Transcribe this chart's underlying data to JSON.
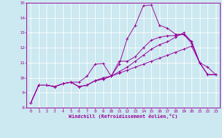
{
  "title": "",
  "xlabel": "Windchill (Refroidissement éolien,°C)",
  "bg_color": "#cce8f0",
  "grid_color": "#ffffff",
  "line_color": "#990099",
  "xlim": [
    -0.5,
    23.5
  ],
  "ylim": [
    8,
    15
  ],
  "xticks": [
    0,
    1,
    2,
    3,
    4,
    5,
    6,
    7,
    8,
    9,
    10,
    11,
    12,
    13,
    14,
    15,
    16,
    17,
    18,
    19,
    20,
    21,
    22,
    23
  ],
  "yticks": [
    8,
    9,
    10,
    11,
    12,
    13,
    14,
    15
  ],
  "series": [
    [
      8.3,
      9.5,
      9.5,
      9.4,
      9.6,
      9.7,
      9.4,
      9.5,
      9.8,
      10.0,
      10.1,
      10.9,
      12.6,
      13.5,
      14.8,
      14.85,
      13.5,
      13.3,
      12.9,
      12.9,
      12.4,
      11.0,
      10.7,
      10.2
    ],
    [
      8.3,
      9.5,
      9.5,
      9.4,
      9.6,
      9.7,
      9.7,
      10.1,
      10.9,
      10.95,
      10.1,
      11.1,
      11.1,
      11.4,
      12.0,
      12.5,
      12.7,
      12.8,
      12.8,
      12.9,
      12.3,
      11.0,
      10.2,
      10.2
    ],
    [
      8.3,
      9.5,
      9.5,
      9.4,
      9.6,
      9.7,
      9.4,
      9.5,
      9.8,
      9.9,
      10.1,
      10.4,
      10.7,
      11.1,
      11.5,
      11.9,
      12.2,
      12.4,
      12.7,
      13.0,
      12.4,
      11.0,
      10.2,
      10.2
    ],
    [
      8.3,
      9.5,
      9.5,
      9.4,
      9.6,
      9.7,
      9.4,
      9.5,
      9.8,
      9.9,
      10.1,
      10.3,
      10.5,
      10.7,
      10.9,
      11.1,
      11.3,
      11.5,
      11.7,
      11.9,
      12.1,
      11.0,
      10.2,
      10.2
    ]
  ]
}
